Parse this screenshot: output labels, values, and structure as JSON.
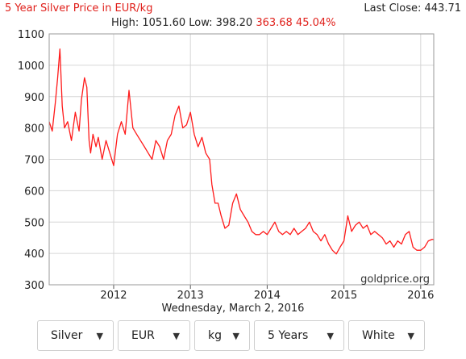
{
  "header": {
    "title": "5 Year Silver Price in EUR/kg",
    "last_close": "Last Close: 443.71",
    "high_low": "High: 1051.60 Low: 398.20",
    "change": "363.68 45.04%"
  },
  "date_label": "Wednesday, March 2, 2016",
  "watermark": "goldprice.org",
  "controls": [
    {
      "value": "Silver"
    },
    {
      "value": "EUR"
    },
    {
      "value": "kg"
    },
    {
      "value": "5 Years"
    },
    {
      "value": "White"
    }
  ],
  "colors": {
    "line": "#ff1a1a",
    "title": "#e0201b",
    "grid": "#d6d6d6"
  },
  "chart_data": {
    "type": "line",
    "title": "5 Year Silver Price in EUR/kg",
    "xlabel": "",
    "ylabel": "",
    "xlim": [
      2011.16,
      2016.17
    ],
    "ylim": [
      300,
      1100
    ],
    "grid": true,
    "y_ticks": [
      300,
      400,
      500,
      600,
      700,
      800,
      900,
      1000,
      1100
    ],
    "x_ticks": [
      2012,
      2013,
      2014,
      2015,
      2016
    ],
    "series": [
      {
        "x": [
          2011.16,
          2011.2,
          2011.24,
          2011.27,
          2011.3,
          2011.33,
          2011.36,
          2011.4,
          2011.45,
          2011.5,
          2011.55,
          2011.58,
          2011.62,
          2011.65,
          2011.68,
          2011.7,
          2011.73,
          2011.77,
          2011.8,
          2011.85,
          2011.9,
          2011.95,
          2012.0,
          2012.05,
          2012.1,
          2012.15,
          2012.2,
          2012.25,
          2012.3,
          2012.35,
          2012.4,
          2012.45,
          2012.5,
          2012.55,
          2012.6,
          2012.65,
          2012.7,
          2012.75,
          2012.8,
          2012.85,
          2012.9,
          2012.95,
          2013.0,
          2013.05,
          2013.1,
          2013.15,
          2013.2,
          2013.25,
          2013.28,
          2013.32,
          2013.36,
          2013.4,
          2013.45,
          2013.5,
          2013.55,
          2013.6,
          2013.65,
          2013.7,
          2013.75,
          2013.8,
          2013.85,
          2013.9,
          2013.95,
          2014.0,
          2014.05,
          2014.1,
          2014.15,
          2014.2,
          2014.25,
          2014.3,
          2014.35,
          2014.4,
          2014.45,
          2014.5,
          2014.55,
          2014.6,
          2014.65,
          2014.7,
          2014.75,
          2014.8,
          2014.85,
          2014.9,
          2014.95,
          2015.0,
          2015.05,
          2015.1,
          2015.15,
          2015.2,
          2015.25,
          2015.3,
          2015.35,
          2015.4,
          2015.45,
          2015.5,
          2015.55,
          2015.6,
          2015.65,
          2015.7,
          2015.75,
          2015.8,
          2015.85,
          2015.9,
          2015.95,
          2016.0,
          2016.05,
          2016.1,
          2016.15,
          2016.17
        ],
        "y": [
          820,
          790,
          880,
          960,
          1051.6,
          870,
          800,
          820,
          760,
          850,
          790,
          890,
          960,
          930,
          760,
          720,
          780,
          740,
          770,
          700,
          760,
          720,
          680,
          780,
          820,
          780,
          920,
          800,
          780,
          760,
          740,
          720,
          700,
          760,
          740,
          700,
          760,
          780,
          840,
          870,
          800,
          810,
          850,
          780,
          740,
          770,
          720,
          700,
          620,
          560,
          560,
          520,
          480,
          490,
          560,
          590,
          540,
          520,
          500,
          470,
          460,
          460,
          470,
          460,
          480,
          500,
          470,
          460,
          470,
          460,
          480,
          460,
          470,
          480,
          500,
          470,
          460,
          440,
          460,
          430,
          410,
          398.2,
          420,
          440,
          520,
          470,
          490,
          500,
          480,
          490,
          460,
          470,
          460,
          450,
          430,
          440,
          420,
          440,
          430,
          460,
          470,
          420,
          410,
          410,
          420,
          440,
          445,
          443.71
        ]
      }
    ]
  }
}
